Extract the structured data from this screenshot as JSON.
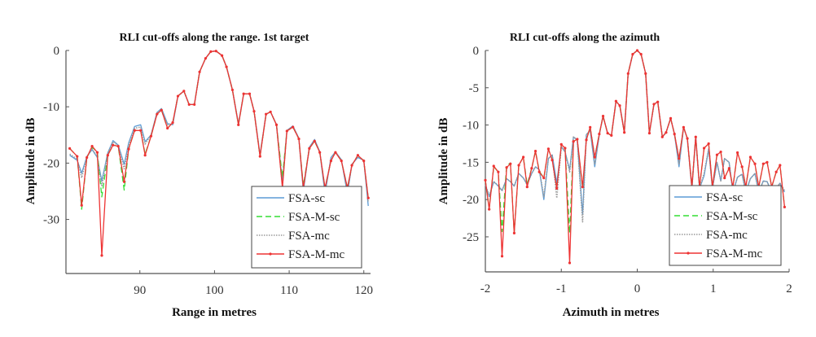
{
  "chart_data": [
    {
      "type": "line",
      "title": "RLI cut-offs along the range. 1st target",
      "xlabel": "Range in metres",
      "ylabel": "Amplitude in dB",
      "xlim": [
        80.1,
        120.9
      ],
      "ylim": [
        -39.6,
        0
      ],
      "xticks": [
        90,
        100,
        110,
        120
      ],
      "yticks": [
        0,
        -10,
        -20,
        -30
      ],
      "grid": false,
      "legend_position": "bottom-right",
      "x": [
        80.6,
        81.6,
        82.2,
        82.9,
        83.6,
        84.3,
        84.9,
        85.7,
        86.4,
        87.1,
        87.9,
        88.5,
        89.3,
        90.1,
        90.7,
        91.5,
        92.3,
        92.9,
        93.7,
        94.4,
        95.1,
        95.9,
        96.6,
        97.3,
        98.0,
        98.8,
        99.5,
        100.2,
        101.0,
        101.6,
        102.4,
        103.2,
        103.9,
        104.7,
        105.3,
        106.1,
        106.9,
        107.5,
        108.3,
        109.1,
        109.7,
        110.5,
        111.3,
        111.9,
        112.7,
        113.4,
        114.1,
        114.8,
        115.6,
        116.2,
        117.0,
        117.8,
        118.4,
        119.2,
        120.0,
        120.6
      ],
      "series": [
        {
          "name": "FSA-sc",
          "color": "#5b9bd5",
          "style": "solid",
          "values": [
            -18.6,
            -19.5,
            -21.8,
            -18.8,
            -17.6,
            -19.0,
            -23.2,
            -18.2,
            -16.0,
            -16.8,
            -20.2,
            -16.4,
            -13.5,
            -13.2,
            -16.2,
            -15.0,
            -11.0,
            -10.3,
            -13.0,
            -13.2,
            -8.1,
            -7.2,
            -9.6,
            -9.6,
            -3.8,
            -1.4,
            -0.2,
            -0.1,
            -0.9,
            -2.9,
            -7.0,
            -13.0,
            -7.7,
            -7.7,
            -10.8,
            -18.5,
            -11.3,
            -10.9,
            -13.2,
            -23.5,
            -14.2,
            -13.4,
            -15.6,
            -25.0,
            -17.2,
            -15.8,
            -18.0,
            -25.5,
            -19.0,
            -18.0,
            -19.4,
            -25.5,
            -20.2,
            -19.0,
            -19.5,
            -27.6
          ]
        },
        {
          "name": "FSA-M-sc",
          "color": "#33dd33",
          "style": "dashed",
          "values": [
            -17.4,
            -18.8,
            -28.2,
            -19.0,
            -17.2,
            -18.0,
            -26.0,
            -18.6,
            -16.8,
            -17.0,
            -24.8,
            -17.5,
            -14.2,
            -14.2,
            -18.4,
            -15.2,
            -11.3,
            -10.6,
            -13.8,
            -12.8,
            -8.1,
            -7.2,
            -9.6,
            -9.6,
            -3.8,
            -1.4,
            -0.2,
            -0.1,
            -0.9,
            -2.9,
            -7.0,
            -13.2,
            -7.7,
            -7.7,
            -10.8,
            -18.8,
            -11.3,
            -10.9,
            -13.2,
            -22.5,
            -14.3,
            -13.6,
            -15.7,
            -24.0,
            -17.4,
            -16.1,
            -18.1,
            -24.4,
            -19.6,
            -18.1,
            -19.6,
            -24.4,
            -20.4,
            -18.6,
            -19.6,
            -26.2
          ]
        },
        {
          "name": "FSA-mc",
          "color": "#999999",
          "style": "dotted",
          "values": [
            -18.4,
            -19.3,
            -22.6,
            -18.8,
            -17.5,
            -18.8,
            -24.0,
            -18.3,
            -16.2,
            -16.9,
            -21.0,
            -16.8,
            -13.8,
            -13.6,
            -16.6,
            -15.0,
            -11.1,
            -10.4,
            -13.2,
            -13.0,
            -8.1,
            -7.2,
            -9.6,
            -9.6,
            -3.8,
            -1.4,
            -0.2,
            -0.1,
            -0.9,
            -2.9,
            -7.0,
            -13.1,
            -7.7,
            -7.7,
            -10.8,
            -18.6,
            -11.3,
            -10.9,
            -13.2,
            -24.0,
            -14.2,
            -13.5,
            -15.6,
            -24.7,
            -17.3,
            -16.0,
            -18.0,
            -25.0,
            -19.3,
            -18.0,
            -19.5,
            -25.0,
            -20.3,
            -18.8,
            -19.5,
            -27.0
          ]
        },
        {
          "name": "FSA-M-mc",
          "color": "#ee3333",
          "style": "solid-marker",
          "values": [
            -17.4,
            -18.8,
            -27.5,
            -19.0,
            -17.0,
            -18.1,
            -36.4,
            -18.6,
            -16.8,
            -17.0,
            -23.3,
            -17.5,
            -14.2,
            -14.2,
            -18.6,
            -15.2,
            -11.3,
            -10.6,
            -13.8,
            -12.8,
            -8.1,
            -7.2,
            -9.6,
            -9.6,
            -3.8,
            -1.4,
            -0.2,
            -0.1,
            -0.9,
            -2.9,
            -7.0,
            -13.2,
            -7.7,
            -7.7,
            -10.8,
            -18.8,
            -11.3,
            -10.9,
            -13.2,
            -24.4,
            -14.3,
            -13.6,
            -15.7,
            -24.4,
            -17.4,
            -16.1,
            -18.1,
            -24.4,
            -19.6,
            -18.1,
            -19.6,
            -24.4,
            -20.4,
            -18.6,
            -19.6,
            -26.2
          ]
        }
      ]
    },
    {
      "type": "line",
      "title": "RLI cut-offs along the azimuth",
      "xlabel": "Azimuth in metres",
      "ylabel": "Amplitude in dB",
      "xlim": [
        -2,
        2
      ],
      "ylim": [
        -29.7,
        0
      ],
      "xticks": [
        -2,
        -1,
        0,
        1,
        2
      ],
      "yticks": [
        0,
        -5,
        -10,
        -15,
        -20,
        -25
      ],
      "grid": false,
      "legend_position": "bottom-right",
      "x": [
        -2.0,
        -1.95,
        -1.89,
        -1.83,
        -1.78,
        -1.72,
        -1.67,
        -1.62,
        -1.56,
        -1.5,
        -1.45,
        -1.39,
        -1.34,
        -1.29,
        -1.23,
        -1.17,
        -1.12,
        -1.06,
        -1.0,
        -0.95,
        -0.89,
        -0.84,
        -0.79,
        -0.72,
        -0.67,
        -0.62,
        -0.56,
        -0.5,
        -0.45,
        -0.39,
        -0.34,
        -0.28,
        -0.23,
        -0.17,
        -0.12,
        -0.06,
        0.0,
        0.05,
        0.11,
        0.16,
        0.22,
        0.27,
        0.33,
        0.38,
        0.44,
        0.49,
        0.55,
        0.61,
        0.66,
        0.72,
        0.77,
        0.82,
        0.88,
        0.94,
        0.99,
        1.05,
        1.1,
        1.15,
        1.21,
        1.26,
        1.32,
        1.38,
        1.43,
        1.49,
        1.55,
        1.6,
        1.66,
        1.71,
        1.77,
        1.83,
        1.88,
        1.94
      ],
      "series": [
        {
          "name": "FSA-sc",
          "color": "#5b9bd5",
          "style": "solid",
          "values": [
            -18.0,
            -19.6,
            -17.6,
            -18.2,
            -18.8,
            -17.2,
            -17.6,
            -18.2,
            -16.5,
            -17.1,
            -18.0,
            -16.5,
            -15.6,
            -16.0,
            -20.0,
            -14.5,
            -14.0,
            -17.8,
            -12.9,
            -13.6,
            -16.0,
            -11.6,
            -12.0,
            -22.0,
            -11.3,
            -10.7,
            -15.6,
            -11.3,
            -8.8,
            -11.1,
            -11.4,
            -6.8,
            -7.4,
            -11.0,
            -3.1,
            -0.5,
            0.0,
            -0.5,
            -3.1,
            -11.1,
            -7.2,
            -6.9,
            -11.6,
            -11.0,
            -9.1,
            -11.2,
            -15.6,
            -10.3,
            -11.8,
            -18.5,
            -11.6,
            -18.5,
            -16.8,
            -13.2,
            -18.5,
            -15.0,
            -17.5,
            -14.5,
            -15.0,
            -19.0,
            -17.0,
            -16.6,
            -19.0,
            -17.2,
            -16.5,
            -19.0,
            -17.5,
            -17.6,
            -19.0,
            -18.5,
            -17.8,
            -19.0
          ]
        },
        {
          "name": "FSA-M-sc",
          "color": "#33dd33",
          "style": "dashed",
          "values": [
            -17.4,
            -21.2,
            -15.6,
            -16.3,
            -24.3,
            -15.4,
            -15.1,
            -24.5,
            -15.4,
            -14.3,
            -18.0,
            -15.8,
            -13.5,
            -16.2,
            -17.1,
            -13.2,
            -14.7,
            -18.5,
            -12.6,
            -13.1,
            -24.5,
            -12.2,
            -11.9,
            -18.5,
            -12.0,
            -10.3,
            -14.3,
            -11.2,
            -8.8,
            -11.1,
            -11.4,
            -6.8,
            -7.4,
            -11.0,
            -3.1,
            -0.5,
            0.0,
            -0.5,
            -3.1,
            -11.1,
            -7.2,
            -6.9,
            -11.6,
            -11.0,
            -9.1,
            -11.2,
            -14.5,
            -10.3,
            -11.8,
            -18.3,
            -11.6,
            -18.3,
            -13.1,
            -12.5,
            -18.3,
            -14.0,
            -13.6,
            -17.1,
            -15.8,
            -18.3,
            -13.7,
            -15.6,
            -18.3,
            -14.3,
            -15.2,
            -18.3,
            -15.2,
            -15.0,
            -18.3,
            -16.3,
            -15.4,
            -21.0
          ]
        },
        {
          "name": "FSA-mc",
          "color": "#999999",
          "style": "dotted",
          "values": [
            -18.0,
            -19.5,
            -17.6,
            -18.1,
            -18.8,
            -17.2,
            -17.6,
            -18.2,
            -16.5,
            -17.1,
            -18.0,
            -16.5,
            -15.6,
            -16.0,
            -19.6,
            -14.5,
            -14.0,
            -19.8,
            -12.9,
            -13.6,
            -16.3,
            -11.6,
            -12.0,
            -23.0,
            -11.3,
            -10.7,
            -15.2,
            -11.3,
            -8.8,
            -11.1,
            -11.4,
            -6.8,
            -7.4,
            -11.0,
            -3.1,
            -0.5,
            0.0,
            -0.5,
            -3.1,
            -11.1,
            -7.2,
            -6.9,
            -11.6,
            -11.0,
            -9.1,
            -11.2,
            -15.2,
            -10.3,
            -11.8,
            -18.5,
            -11.6,
            -18.5,
            -16.5,
            -13.2,
            -18.5,
            -15.0,
            -17.5,
            -14.5,
            -15.0,
            -19.0,
            -17.0,
            -16.6,
            -19.0,
            -17.2,
            -16.5,
            -19.0,
            -17.5,
            -17.6,
            -19.0,
            -18.5,
            -17.8,
            -18.8
          ]
        },
        {
          "name": "FSA-M-mc",
          "color": "#ee3333",
          "style": "solid-marker",
          "values": [
            -17.4,
            -21.3,
            -15.5,
            -16.3,
            -27.6,
            -15.7,
            -15.2,
            -24.5,
            -15.4,
            -14.3,
            -18.3,
            -15.8,
            -13.5,
            -16.3,
            -17.1,
            -13.2,
            -14.7,
            -18.5,
            -12.6,
            -13.1,
            -28.5,
            -12.2,
            -11.9,
            -18.3,
            -12.0,
            -10.3,
            -14.3,
            -11.2,
            -8.8,
            -11.1,
            -11.4,
            -6.8,
            -7.4,
            -11.0,
            -3.1,
            -0.5,
            0.0,
            -0.5,
            -3.1,
            -11.1,
            -7.2,
            -6.9,
            -11.6,
            -11.0,
            -9.1,
            -11.2,
            -14.5,
            -10.3,
            -11.8,
            -18.3,
            -11.6,
            -18.3,
            -13.1,
            -12.5,
            -18.3,
            -14.0,
            -13.6,
            -17.1,
            -15.8,
            -18.3,
            -13.7,
            -15.6,
            -18.3,
            -14.3,
            -15.2,
            -18.3,
            -15.2,
            -15.0,
            -18.3,
            -16.3,
            -15.4,
            -21.0
          ]
        }
      ]
    }
  ]
}
